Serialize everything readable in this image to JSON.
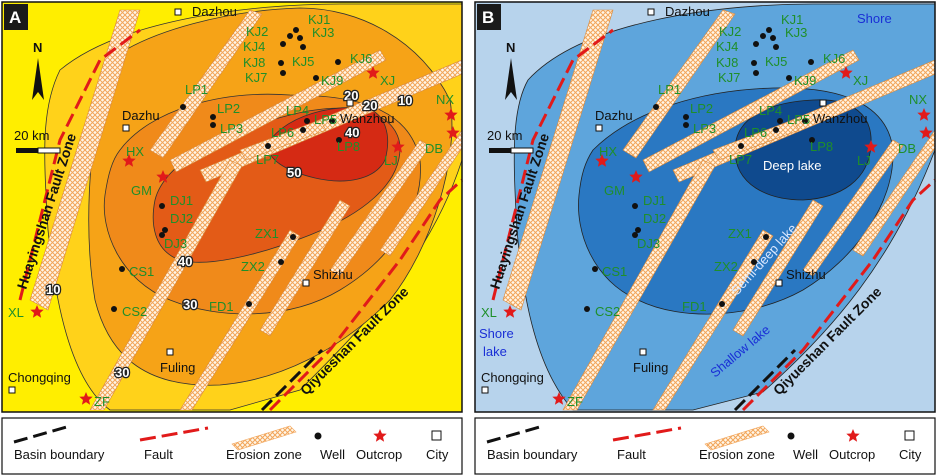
{
  "panel_a": {
    "letter": "A",
    "contour_values": [
      "10",
      "10",
      "20",
      "20",
      "30",
      "30",
      "40",
      "40",
      "50"
    ]
  },
  "panel_b": {
    "letter": "B",
    "facies": {
      "shore": "Shore",
      "shore_lake_1": "Shore",
      "shore_lake_2": "lake",
      "deep": "Deep lake",
      "semi_deep": "Semi-deep lake",
      "shallow": "Shallow lake"
    }
  },
  "common": {
    "north": "N",
    "scale": "20 km",
    "fault_left": "Huayingshan Fault Zone",
    "fault_right": "Qiyueshan Fault Zone",
    "cities": [
      "Dazhou",
      "Dazhu",
      "Wanzhou",
      "Shizhu",
      "Fuling",
      "Chongqing"
    ],
    "wells": [
      "KJ1",
      "KJ2",
      "KJ3",
      "KJ4",
      "KJ5",
      "KJ6",
      "KJ7",
      "KJ8",
      "KJ9",
      "LP1",
      "LP2",
      "LP3",
      "LP4",
      "LP5",
      "LP6",
      "LP7",
      "LP8",
      "DJ1",
      "DJ2",
      "DJ3",
      "ZX1",
      "ZX2",
      "CS1",
      "CS2",
      "FD1"
    ],
    "outcrops": [
      "XJ",
      "NX",
      "DB",
      "LJ",
      "HX",
      "GM",
      "XL",
      "ZF"
    ]
  },
  "legend": {
    "basin_boundary": "Basin boundary",
    "fault": "Fault",
    "erosion_zone": "Erosion zone",
    "well": "Well",
    "outcrop": "Outcrop",
    "city": "City"
  },
  "colors": {
    "a_outer": "#ffee00",
    "a_10": "#ffd21a",
    "a_20": "#f6a317",
    "a_30": "#f08a1a",
    "a_40": "#e35b17",
    "a_50": "#d52a14",
    "b_shore": "#b7d3ec",
    "b_shallow": "#5ea5dc",
    "b_semideep": "#2a78c2",
    "b_deep": "#0f4a8e",
    "fault": "#e11a1a",
    "erosion": "#f2a55a"
  }
}
